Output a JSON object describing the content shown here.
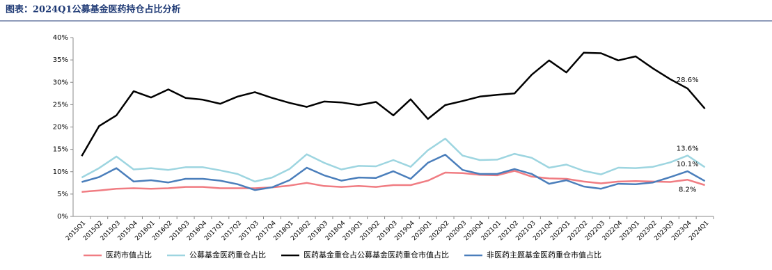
{
  "chart_data": {
    "type": "line",
    "title": "图表：2024Q1公募基金医药持仓占比分析",
    "categories": [
      "2015Q1",
      "2015Q2",
      "2015Q3",
      "2015Q4",
      "2016Q1",
      "2016Q2",
      "2016Q3",
      "2016Q4",
      "2017Q1",
      "2017Q2",
      "2017Q3",
      "2017Q4",
      "2018Q1",
      "2018Q2",
      "2018Q3",
      "2018Q4",
      "2019Q1",
      "2019Q2",
      "2019Q3",
      "2019Q4",
      "2020Q1",
      "2020Q2",
      "2020Q3",
      "2020Q4",
      "2021Q1",
      "2021Q2",
      "2021Q3",
      "2021Q4",
      "2022Q1",
      "2022Q2",
      "2022Q3",
      "2022Q4",
      "2023Q1",
      "2023Q2",
      "2023Q3",
      "2023Q4",
      "2024Q1"
    ],
    "series": [
      {
        "name": "医药市值占比",
        "color": "#f07c82",
        "values": [
          5.5,
          5.8,
          6.2,
          6.3,
          6.2,
          6.3,
          6.6,
          6.6,
          6.3,
          6.3,
          6.3,
          6.5,
          6.9,
          7.5,
          6.8,
          6.6,
          6.8,
          6.6,
          7.0,
          7.0,
          8.0,
          9.8,
          9.7,
          9.3,
          9.2,
          10.2,
          8.9,
          8.5,
          8.4,
          7.8,
          7.4,
          7.8,
          7.9,
          7.8,
          7.7,
          8.2,
          7.0
        ],
        "value_labels": [
          null,
          null,
          null,
          null,
          null,
          null,
          null,
          null,
          null,
          null,
          null,
          null,
          null,
          null,
          null,
          null,
          null,
          null,
          null,
          null,
          null,
          null,
          null,
          null,
          null,
          null,
          null,
          null,
          null,
          null,
          null,
          null,
          null,
          null,
          null,
          "8.2%",
          null
        ]
      },
      {
        "name": "公募基金医药重仓占比",
        "color": "#9dd5e0",
        "values": [
          8.7,
          10.8,
          13.4,
          10.5,
          10.8,
          10.4,
          11.0,
          11.0,
          10.3,
          9.5,
          7.8,
          8.7,
          10.6,
          13.9,
          12.0,
          10.5,
          11.3,
          11.2,
          12.6,
          11.1,
          14.8,
          17.4,
          13.6,
          12.6,
          12.7,
          14.0,
          13.1,
          10.9,
          11.6,
          10.2,
          9.4,
          10.9,
          10.8,
          11.1,
          12.1,
          13.6,
          11.0
        ],
        "value_labels": [
          null,
          null,
          null,
          null,
          null,
          null,
          null,
          null,
          null,
          null,
          null,
          null,
          null,
          null,
          null,
          null,
          null,
          null,
          null,
          null,
          null,
          null,
          null,
          null,
          null,
          null,
          null,
          null,
          null,
          null,
          null,
          null,
          null,
          null,
          null,
          "13.6%",
          null
        ]
      },
      {
        "name": "医药基金重仓占公募基金医药重仓市值占比",
        "color": "#000000",
        "values": [
          13.5,
          20.2,
          22.6,
          28.0,
          26.6,
          28.4,
          26.5,
          26.1,
          25.2,
          26.8,
          27.8,
          26.5,
          25.4,
          24.5,
          25.7,
          25.5,
          24.9,
          25.6,
          22.6,
          26.2,
          21.8,
          24.9,
          25.8,
          26.8,
          27.2,
          27.5,
          31.7,
          34.9,
          32.2,
          36.6,
          36.5,
          34.9,
          35.8,
          33.1,
          30.7,
          28.6,
          24.1
        ],
        "value_labels": [
          null,
          null,
          null,
          null,
          null,
          null,
          null,
          null,
          null,
          null,
          null,
          null,
          null,
          null,
          null,
          null,
          null,
          null,
          null,
          null,
          null,
          null,
          null,
          null,
          null,
          null,
          null,
          null,
          null,
          null,
          null,
          null,
          null,
          null,
          null,
          "28.6%",
          null
        ]
      },
      {
        "name": "非医药主题基金医药重仓市值占比",
        "color": "#4a7ebb",
        "values": [
          7.7,
          8.8,
          10.8,
          7.8,
          8.1,
          7.6,
          8.4,
          8.4,
          8.0,
          7.2,
          5.9,
          6.5,
          8.1,
          10.9,
          9.2,
          8.0,
          8.7,
          8.6,
          10.1,
          8.4,
          12.0,
          13.8,
          10.4,
          9.5,
          9.5,
          10.6,
          9.5,
          7.3,
          8.1,
          6.7,
          6.2,
          7.3,
          7.2,
          7.6,
          8.8,
          10.1,
          7.9
        ],
        "value_labels": [
          null,
          null,
          null,
          null,
          null,
          null,
          null,
          null,
          null,
          null,
          null,
          null,
          null,
          null,
          null,
          null,
          null,
          null,
          null,
          null,
          null,
          null,
          null,
          null,
          null,
          null,
          null,
          null,
          null,
          null,
          null,
          null,
          null,
          null,
          null,
          "10.1%",
          null
        ]
      }
    ],
    "ylim": [
      0,
      40
    ],
    "yticks": [
      {
        "value": 0,
        "label": "0%"
      },
      {
        "value": 5,
        "label": "5%"
      },
      {
        "value": 10,
        "label": "10%"
      },
      {
        "value": 15,
        "label": "15%"
      },
      {
        "value": 20,
        "label": "20%"
      },
      {
        "value": 25,
        "label": "25%"
      },
      {
        "value": 30,
        "label": "30%"
      },
      {
        "value": 35,
        "label": "35%"
      },
      {
        "value": 40,
        "label": "40%"
      }
    ],
    "grid": false
  }
}
